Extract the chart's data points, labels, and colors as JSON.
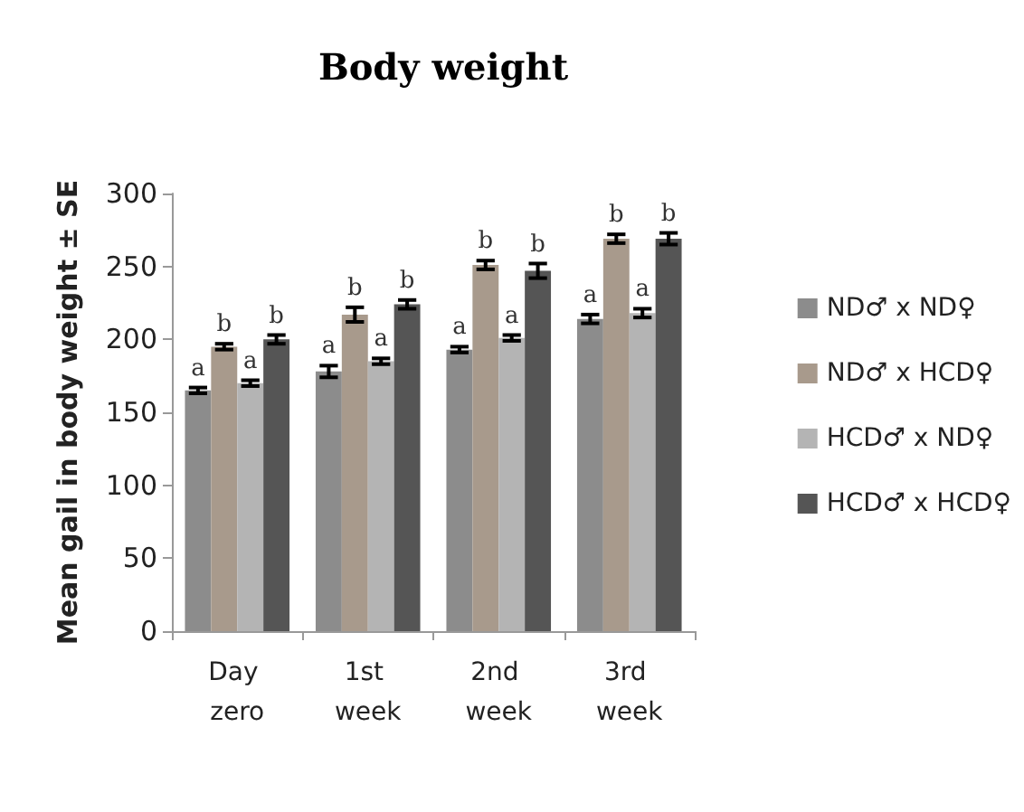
{
  "chart_data": {
    "type": "bar",
    "title": "Body weight",
    "ylabel": "Mean gail in body weight ± SE",
    "categories": [
      "Day zero",
      "1st week",
      "2nd week",
      "3rd week"
    ],
    "series": [
      {
        "name": "ND♂ x ND♀",
        "color": "#8c8c8c",
        "values": [
          165,
          178,
          193,
          214
        ],
        "errors": [
          2,
          4,
          2,
          3
        ]
      },
      {
        "name": "ND♂ x HCD♀",
        "color": "#a89a8c",
        "values": [
          195,
          217,
          251,
          269
        ],
        "errors": [
          2,
          5,
          3,
          3
        ]
      },
      {
        "name": "HCD♂ x ND♀",
        "color": "#b4b4b4",
        "values": [
          170,
          185,
          201,
          218
        ],
        "errors": [
          2,
          2,
          2,
          3
        ]
      },
      {
        "name": "HCD♂ x HCD♀",
        "color": "#555555",
        "values": [
          200,
          224,
          247,
          269
        ],
        "errors": [
          3,
          3,
          5,
          4
        ]
      }
    ],
    "annotations": [
      {
        "text": "a",
        "x": "Day zero",
        "y": 165
      },
      {
        "text": "b",
        "x": "Day zero",
        "y": 195
      },
      {
        "text": "a",
        "x": "Day zero",
        "y": 170
      },
      {
        "text": "b",
        "x": "Day zero",
        "y": 200
      },
      {
        "text": "a",
        "x": "1st week",
        "y": 178
      },
      {
        "text": "b",
        "x": "1st week",
        "y": 217
      },
      {
        "text": "a",
        "x": "1st week",
        "y": 185
      },
      {
        "text": "b",
        "x": "1st week",
        "y": 224
      },
      {
        "text": "a",
        "x": "2nd week",
        "y": 193
      },
      {
        "text": "b",
        "x": "2nd week",
        "y": 251
      },
      {
        "text": "a",
        "x": "2nd week",
        "y": 201
      },
      {
        "text": "b",
        "x": "2nd week",
        "y": 247
      },
      {
        "text": "a",
        "x": "3rd week",
        "y": 214
      },
      {
        "text": "b",
        "x": "3rd week",
        "y": 269
      },
      {
        "text": "a",
        "x": "3rd week",
        "y": 218
      },
      {
        "text": "b",
        "x": "3rd week",
        "y": 269
      }
    ],
    "ylim": [
      0,
      300
    ],
    "yticks": [
      0,
      50,
      100,
      150,
      200,
      250,
      300
    ],
    "grid": false,
    "legend": "right"
  }
}
